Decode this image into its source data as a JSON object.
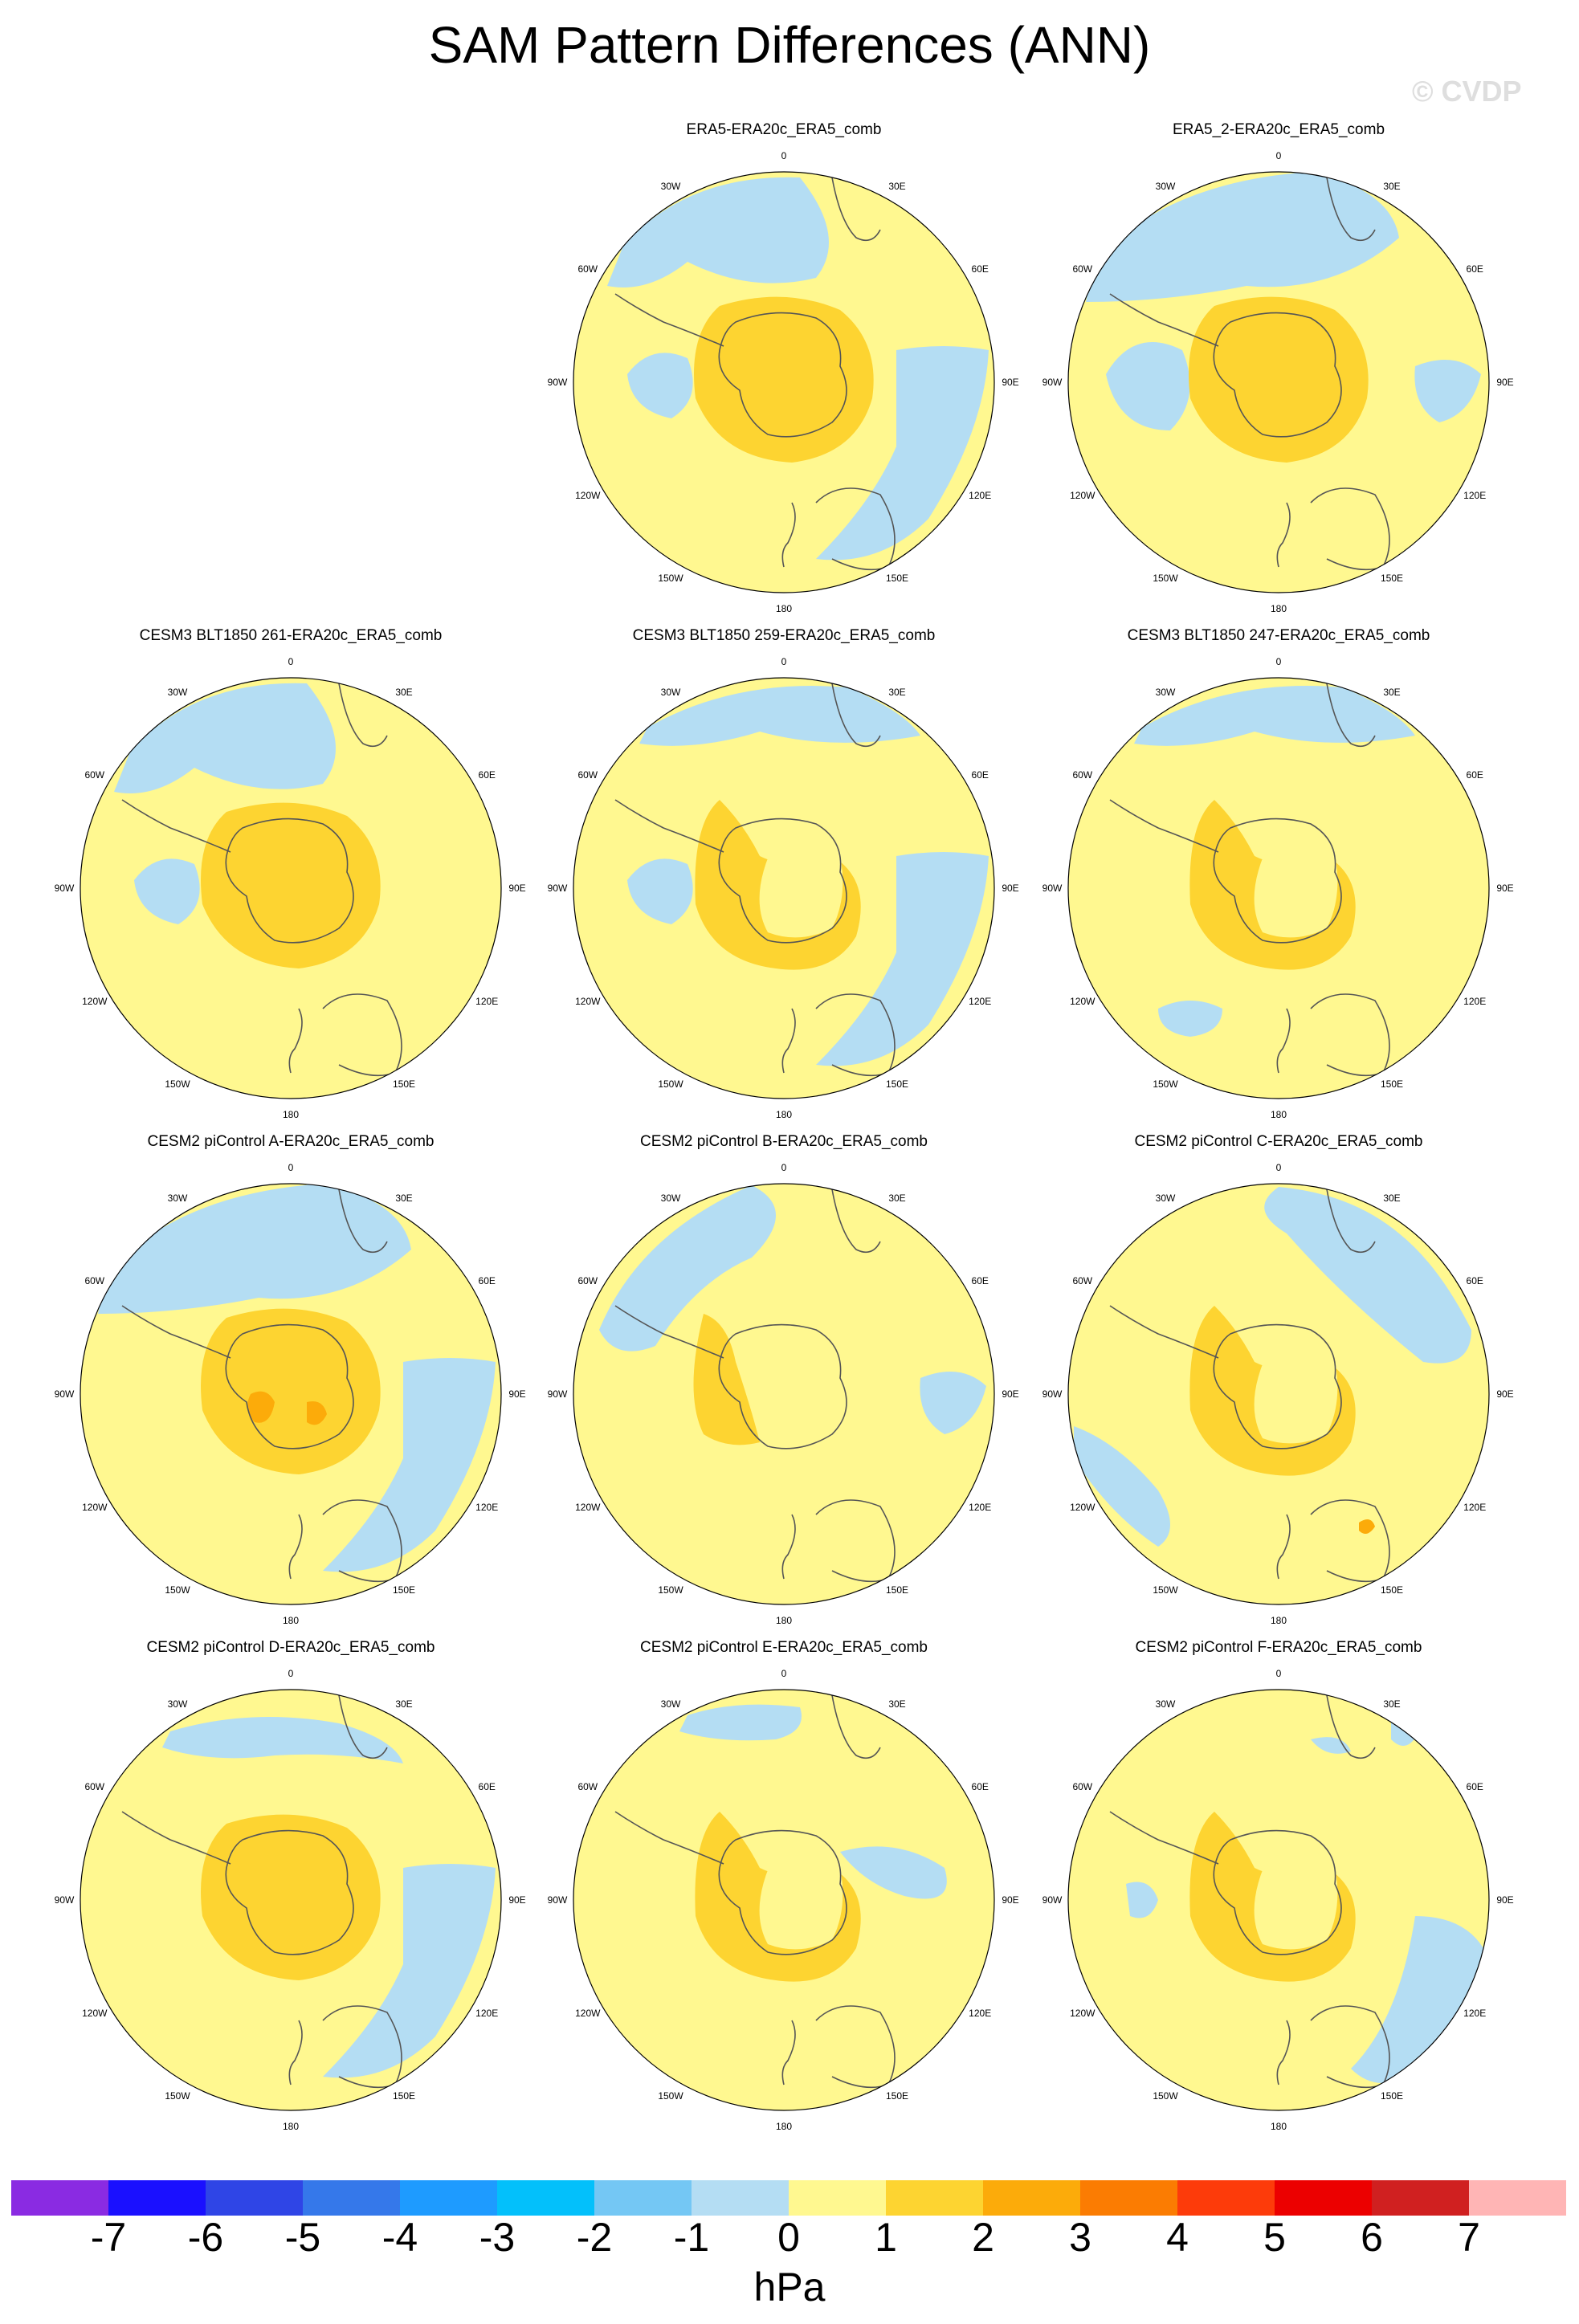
{
  "title": "SAM Pattern Differences (ANN)",
  "watermark": "© CVDP",
  "colors": {
    "land_coast": "#555555",
    "neg1": "#b4ddf3",
    "pos0": "#fff890",
    "pos1": "#fdd431",
    "pos2": "#fcab0a"
  },
  "longitude_labels": [
    "0",
    "30E",
    "60E",
    "90E",
    "120E",
    "150E",
    "180",
    "150W",
    "120W",
    "90W",
    "60W",
    "30W"
  ],
  "panels": [
    {
      "title": "ERA5-ERA20c_ERA5_comb",
      "features": [
        "atl_blue",
        "blue_left",
        "blue_right_edge",
        "core_full"
      ]
    },
    {
      "title": "ERA5_2-ERA20c_ERA5_comb",
      "features": [
        "atl_blue_wide",
        "blue_left_large",
        "blue_right_small",
        "core_full"
      ]
    },
    {
      "title": "CESM3 BLT1850 261-ERA20c_ERA5_comb",
      "features": [
        "atl_blue",
        "blue_left",
        "core_full"
      ]
    },
    {
      "title": "CESM3 BLT1850 259-ERA20c_ERA5_comb",
      "features": [
        "atl_blue_arc",
        "blue_left",
        "blue_right_edge",
        "core_west",
        "pale_center"
      ]
    },
    {
      "title": "CESM3 BLT1850 247-ERA20c_ERA5_comb",
      "features": [
        "atl_blue_arc",
        "blue_bottom",
        "core_west",
        "pale_center"
      ]
    },
    {
      "title": "CESM2 piControl A-ERA20c_ERA5_comb",
      "features": [
        "atl_blue_wide",
        "blue_right_edge",
        "core_full",
        "orange_spots"
      ]
    },
    {
      "title": "CESM2 piControl B-ERA20c_ERA5_comb",
      "features": [
        "blue_topleft",
        "blue_right_small",
        "core_west_thin",
        "pale_center"
      ]
    },
    {
      "title": "CESM2 piControl C-ERA20c_ERA5_comb",
      "features": [
        "blue_diagonal",
        "blue_left_strip",
        "core_west",
        "pale_center",
        "orange_dot"
      ]
    },
    {
      "title": "CESM2 piControl D-ERA20c_ERA5_comb",
      "features": [
        "atl_blue_thin",
        "blue_right_edge",
        "core_full"
      ]
    },
    {
      "title": "CESM2 piControl E-ERA20c_ERA5_comb",
      "features": [
        "atl_blue_small",
        "blue_right_wave",
        "core_west",
        "pale_center"
      ]
    },
    {
      "title": "CESM2 piControl F-ERA20c_ERA5_comb",
      "features": [
        "blue_islands",
        "blue_right_lower",
        "core_west",
        "pale_center"
      ]
    }
  ],
  "colorbar": {
    "colors": [
      "#8a2be2",
      "#1a10ff",
      "#2f45e6",
      "#3578ea",
      "#1e9bff",
      "#03c0fb",
      "#74c7f4",
      "#b4ddf3",
      "#fff890",
      "#fdd431",
      "#fcab0a",
      "#fb7c02",
      "#fd3b0a",
      "#ec0000",
      "#d02020",
      "#ffb5b5"
    ],
    "ticks": [
      "-7",
      "-6",
      "-5",
      "-4",
      "-3",
      "-2",
      "-1",
      "0",
      "1",
      "2",
      "3",
      "4",
      "5",
      "6",
      "7"
    ],
    "unit": "hPa"
  }
}
